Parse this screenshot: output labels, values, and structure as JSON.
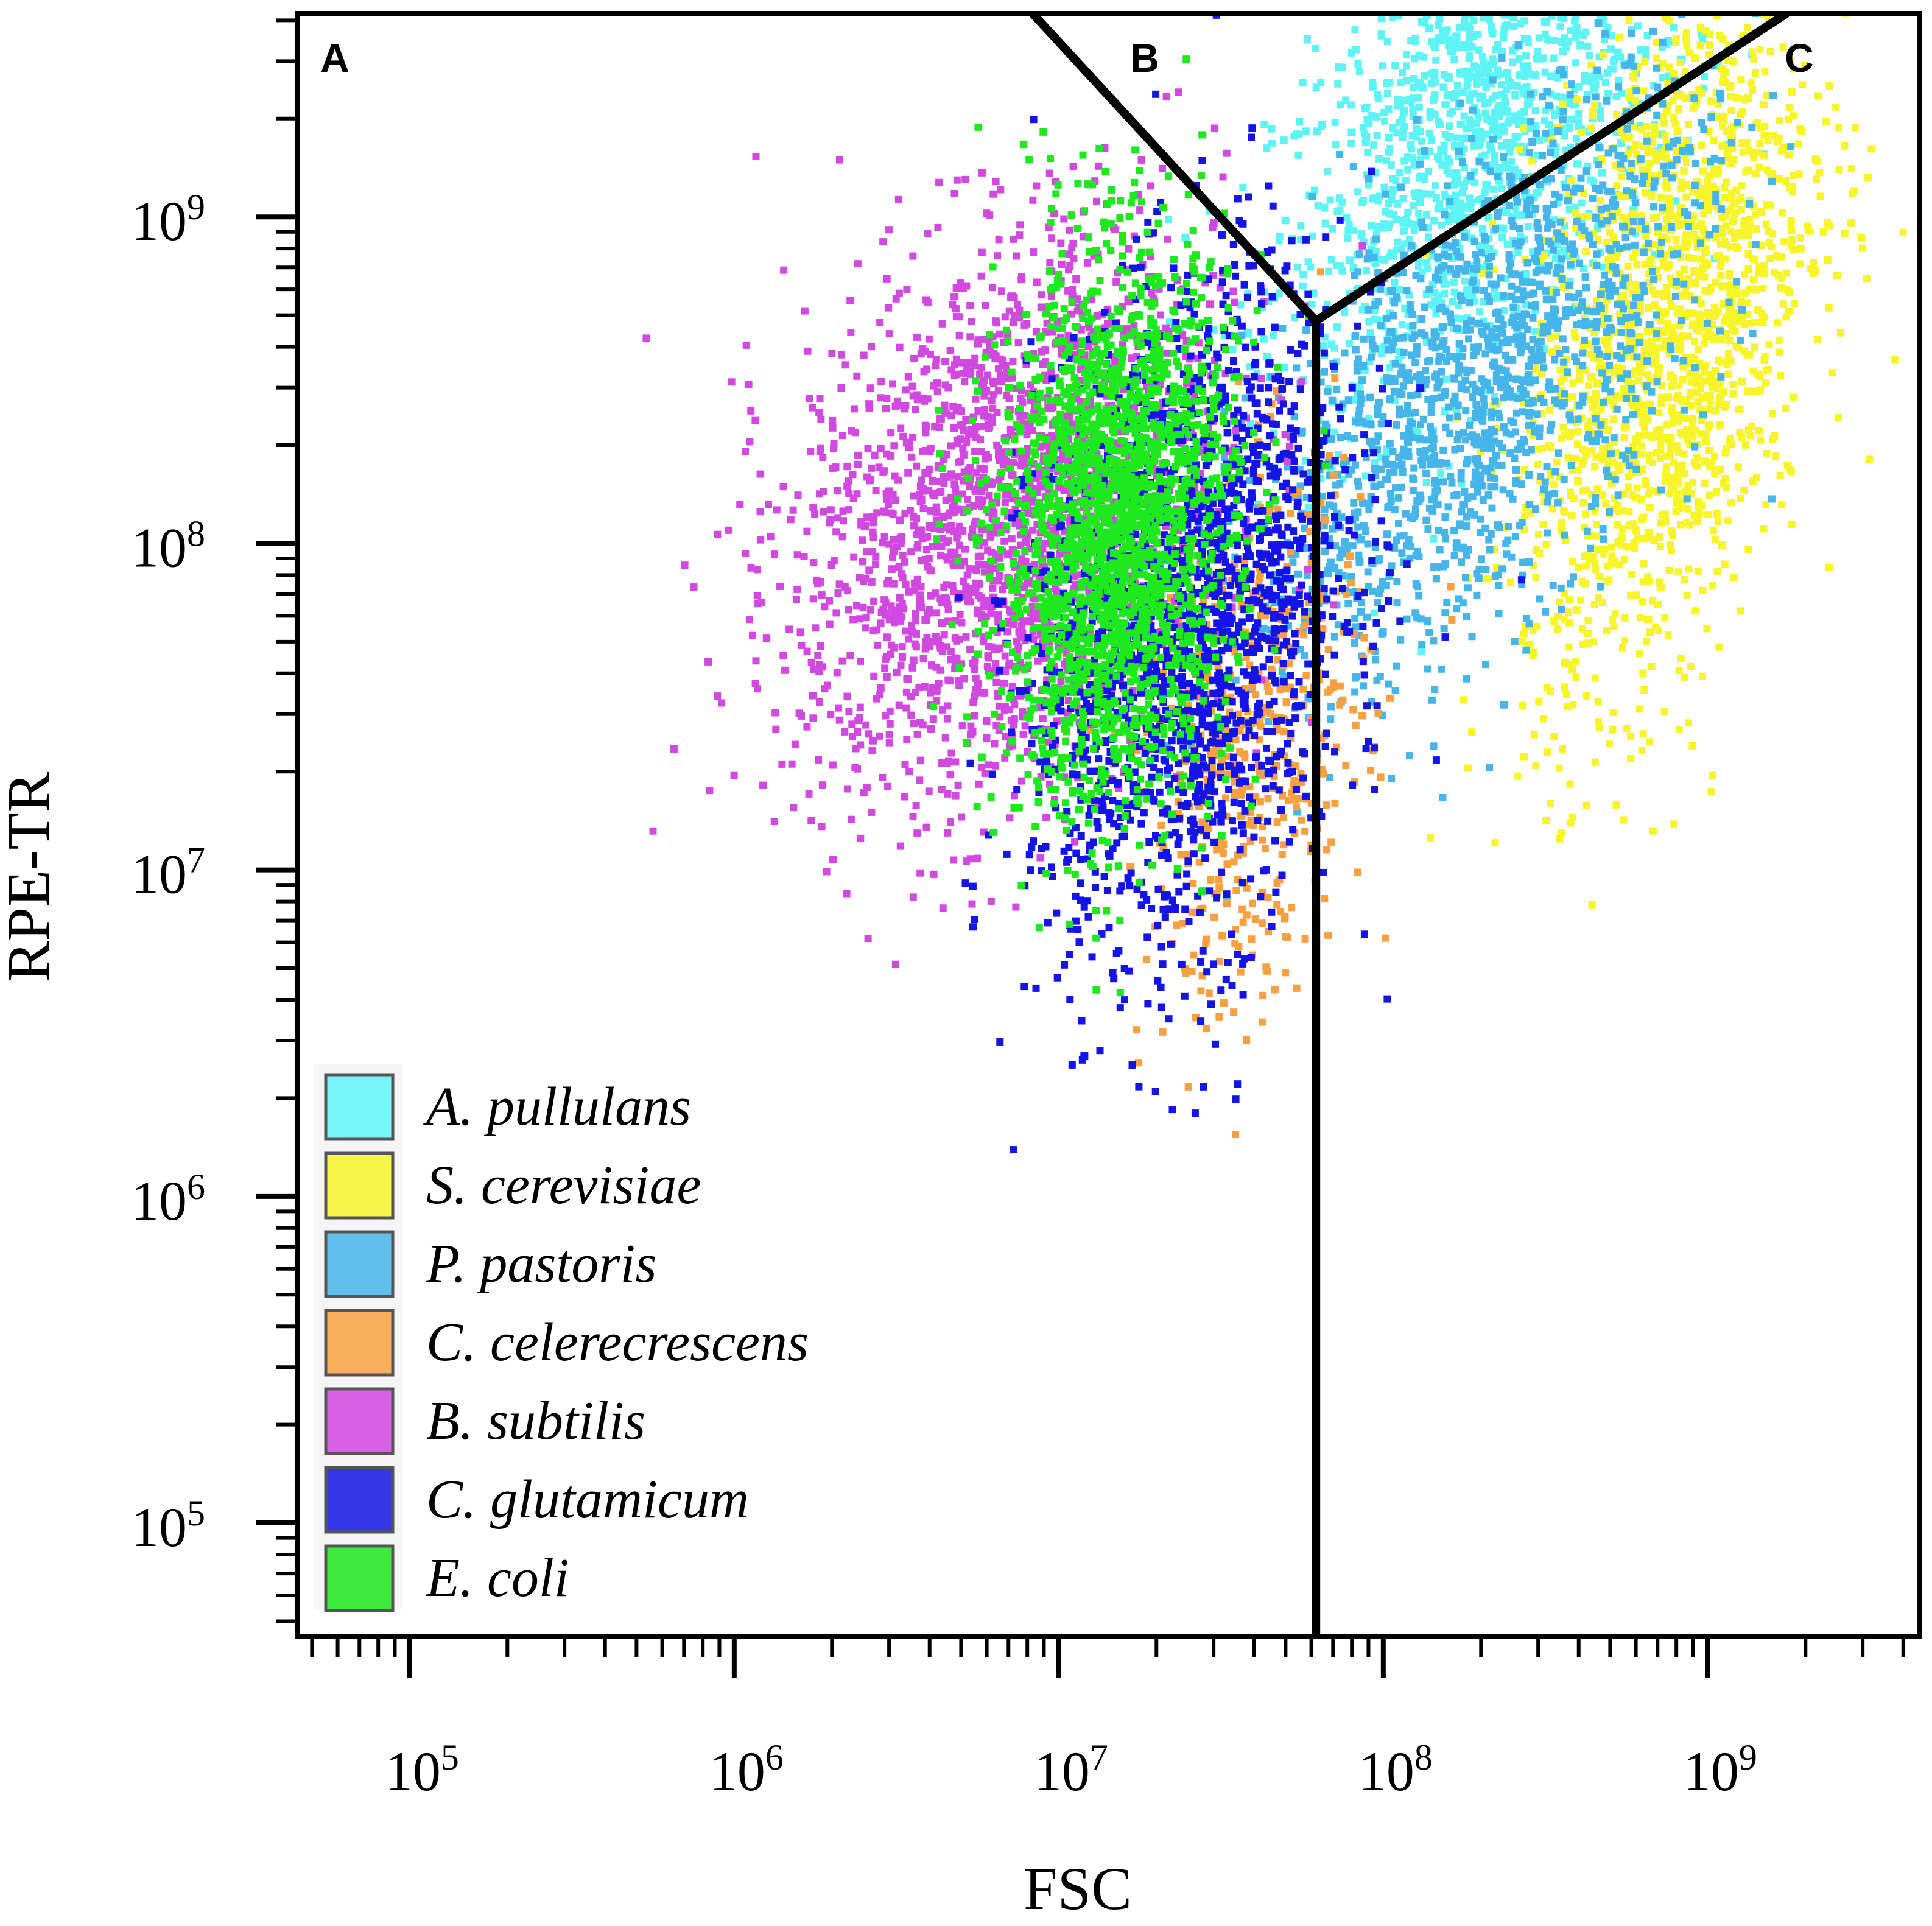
{
  "chart_data": {
    "type": "scatter",
    "subtype": "flow-cytometry density plot",
    "xlabel": "FSC",
    "ylabel": "RPE-TR",
    "x_scale": "log",
    "y_scale": "log",
    "xlim": [
      45000,
      4500000000
    ],
    "ylim": [
      45000,
      4200000000
    ],
    "x_ticks": [
      {
        "value": 100000,
        "base": "10",
        "exp": "5"
      },
      {
        "value": 1000000,
        "base": "10",
        "exp": "6"
      },
      {
        "value": 10000000,
        "base": "10",
        "exp": "7"
      },
      {
        "value": 100000000,
        "base": "10",
        "exp": "8"
      },
      {
        "value": 1000000000,
        "base": "10",
        "exp": "9"
      }
    ],
    "y_ticks": [
      {
        "value": 100000,
        "base": "10",
        "exp": "5"
      },
      {
        "value": 1000000,
        "base": "10",
        "exp": "6"
      },
      {
        "value": 10000000,
        "base": "10",
        "exp": "7"
      },
      {
        "value": 100000000,
        "base": "10",
        "exp": "8"
      },
      {
        "value": 1000000000,
        "base": "10",
        "exp": "9"
      }
    ],
    "grid": false,
    "legend_position": "bottom-left",
    "gates": [
      {
        "label": "A",
        "corner": "top-left"
      },
      {
        "label": "B",
        "corner": "top-center"
      },
      {
        "label": "C",
        "corner": "top-right"
      }
    ],
    "gate_boundary": {
      "vertex": {
        "x": 62000000,
        "y": 480000000
      },
      "top_left_end": {
        "x": 8300000,
        "y": 4200000000
      },
      "top_right_end": {
        "x": 1750000000,
        "y": 4200000000
      },
      "bottom_end": {
        "x": 62000000,
        "y": 45000
      }
    },
    "series": [
      {
        "name": "A. pullulans",
        "color": "#5ef4f6",
        "center": {
          "x": 200000000,
          "y": 1800000000
        },
        "spread": {
          "x": 0.32,
          "y": 0.36
        },
        "tilt": 0.75,
        "n": 1500
      },
      {
        "name": "S. cerevisiae",
        "color": "#f7f42a",
        "center": {
          "x": 750000000,
          "y": 450000000
        },
        "spread": {
          "x": 0.22,
          "y": 0.5
        },
        "tilt": 1.1,
        "n": 1700
      },
      {
        "name": "P. pastoris",
        "color": "#45b5ea",
        "center": {
          "x": 200000000,
          "y": 300000000
        },
        "spread": {
          "x": 0.35,
          "y": 0.35
        },
        "tilt": 0.8,
        "n": 1500
      },
      {
        "name": "C. celerecrescens",
        "color": "#f9a142",
        "center": {
          "x": 40000000,
          "y": 25000000
        },
        "spread": {
          "x": 0.17,
          "y": 0.4
        },
        "tilt": 0.55,
        "n": 500
      },
      {
        "name": "B. subtilis",
        "color": "#d149e0",
        "center": {
          "x": 7000000,
          "y": 120000000
        },
        "spread": {
          "x": 0.33,
          "y": 0.42
        },
        "tilt": 0.3,
        "n": 2100
      },
      {
        "name": "C. glutamicum",
        "color": "#1414e6",
        "center": {
          "x": 25000000,
          "y": 60000000
        },
        "spread": {
          "x": 0.24,
          "y": 0.5
        },
        "tilt": 0.55,
        "n": 1900
      },
      {
        "name": "E. coli",
        "color": "#1ee81e",
        "center": {
          "x": 15000000,
          "y": 110000000
        },
        "spread": {
          "x": 0.18,
          "y": 0.42
        },
        "tilt": 0.25,
        "n": 2100
      }
    ]
  }
}
